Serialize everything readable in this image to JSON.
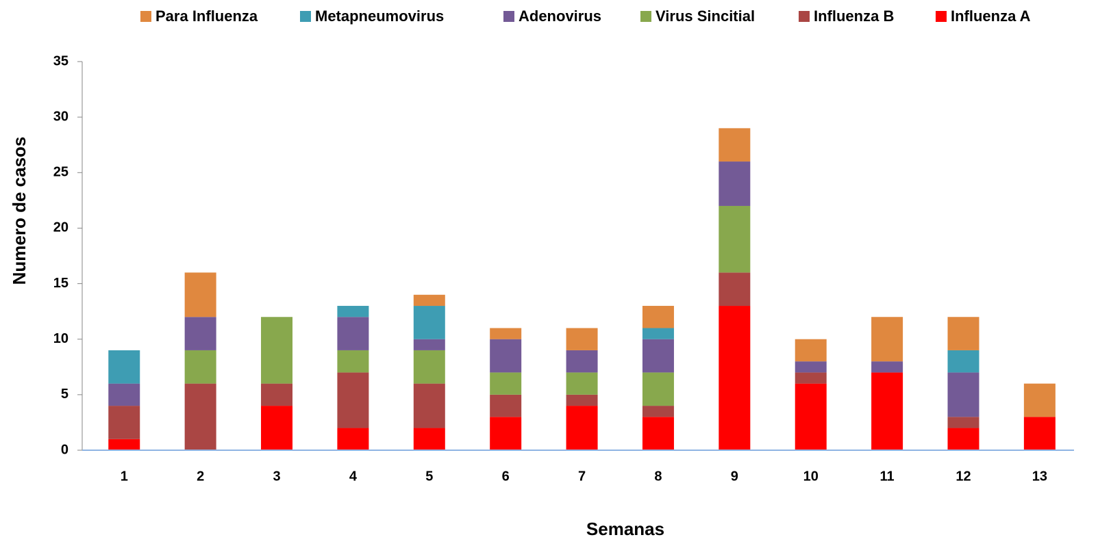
{
  "chart_data": {
    "type": "stacked_bar",
    "x_label": "Semanas",
    "y_label": "Numero de casos",
    "categories": [
      "1",
      "2",
      "3",
      "4",
      "5",
      "6",
      "7",
      "8",
      "9",
      "10",
      "11",
      "12",
      "13"
    ],
    "series": [
      {
        "name": "Para Influenza",
        "color": "#e0883f",
        "values": [
          0,
          4,
          0,
          0,
          1,
          1,
          2,
          2,
          3,
          2,
          4,
          3,
          3
        ]
      },
      {
        "name": "Metapneumovirus",
        "color": "#3e9db3",
        "values": [
          3,
          0,
          0,
          1,
          3,
          0,
          0,
          1,
          0,
          0,
          0,
          2,
          0
        ]
      },
      {
        "name": "Adenovirus",
        "color": "#735a96",
        "values": [
          2,
          3,
          0,
          3,
          1,
          3,
          2,
          3,
          4,
          1,
          1,
          4,
          0
        ]
      },
      {
        "name": "Virus Sincitial",
        "color": "#88a84d",
        "values": [
          0,
          3,
          6,
          2,
          3,
          2,
          2,
          3,
          6,
          0,
          0,
          0,
          0
        ]
      },
      {
        "name": "Influenza B",
        "color": "#aa4644",
        "values": [
          3,
          6,
          2,
          5,
          4,
          2,
          1,
          1,
          3,
          1,
          0,
          1,
          0
        ]
      },
      {
        "name": "Influenza A",
        "color": "#ff0000",
        "values": [
          1,
          0,
          4,
          2,
          2,
          3,
          4,
          3,
          13,
          6,
          7,
          2,
          3
        ]
      }
    ],
    "ylim": [
      0,
      35
    ],
    "yticks": [
      0,
      5,
      10,
      15,
      20,
      25,
      30,
      35
    ]
  }
}
